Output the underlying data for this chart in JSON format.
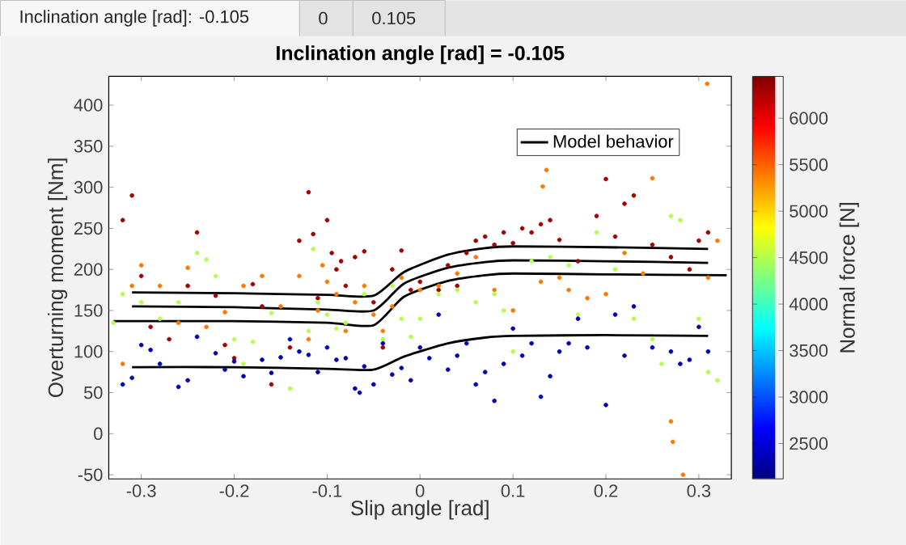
{
  "chart_data": {
    "type": "scatter",
    "title": "Inclination angle [rad] = -0.105",
    "xlabel": "Slip angle [rad]",
    "ylabel": "Overturning moment [Nm]",
    "clabel": "Normal force [N]",
    "annotations": [
      "Inclination angle [rad]: -0.105",
      "0",
      "0.105"
    ],
    "xlim": [
      -0.335,
      0.335
    ],
    "ylim": [
      -55,
      435
    ],
    "xticks": [
      -0.3,
      -0.2,
      -0.1,
      0,
      0.1,
      0.2,
      0.3
    ],
    "yticks": [
      -50,
      0,
      50,
      100,
      150,
      200,
      250,
      300,
      350,
      400
    ],
    "clim": [
      2120,
      6450
    ],
    "cticks": [
      2500,
      3000,
      3500,
      4000,
      4500,
      5000,
      5500,
      6000
    ],
    "legend": "top right",
    "series": [
      {
        "marker": "circle",
        "x": [
          -0.32,
          -0.31,
          -0.3,
          -0.29,
          -0.27,
          -0.25,
          -0.24,
          -0.22,
          -0.21,
          -0.2,
          -0.18,
          -0.17,
          -0.16,
          -0.14,
          -0.13,
          -0.12,
          -0.115,
          -0.11,
          -0.1,
          -0.095,
          -0.09,
          -0.085,
          -0.08,
          -0.07,
          -0.06,
          -0.05,
          -0.04,
          -0.03,
          -0.02,
          -0.01,
          0,
          0.02,
          0.03,
          0.04,
          0.05,
          0.06,
          0.07,
          0.08,
          0.09,
          0.1,
          0.11,
          0.12,
          0.13,
          0.14,
          0.15,
          0.17,
          0.19,
          0.2,
          0.21,
          0.22,
          0.23,
          0.25,
          0.27,
          0.29,
          0.3,
          0.31
        ],
        "values": [
          260,
          290,
          192,
          130,
          115,
          180,
          245,
          168,
          108,
          92,
          182,
          155,
          60,
          105,
          235,
          294,
          243,
          165,
          260,
          220,
          200,
          210,
          180,
          215,
          222,
          160,
          105,
          200,
          223,
          175,
          185,
          175,
          205,
          180,
          220,
          235,
          240,
          230,
          245,
          232,
          250,
          245,
          255,
          260,
          236,
          210,
          265,
          310,
          240,
          280,
          290,
          230,
          215,
          200,
          235,
          245
        ],
        "cvalues": [
          6300,
          6300,
          6300,
          6300,
          6300,
          6300,
          6300,
          6300,
          6300,
          6300,
          6300,
          6300,
          6300,
          6300,
          6300,
          6300,
          6300,
          6300,
          6300,
          6300,
          6300,
          6300,
          6300,
          6300,
          6300,
          6300,
          6300,
          6300,
          6300,
          6300,
          6300,
          6300,
          6300,
          6300,
          6300,
          6300,
          6300,
          6300,
          6300,
          6300,
          6300,
          6300,
          6300,
          6300,
          6300,
          6300,
          6300,
          6300,
          6300,
          6300,
          6300,
          6300,
          6300,
          6300,
          6300,
          6300
        ]
      },
      {
        "marker": "circle",
        "x": [
          -0.32,
          -0.31,
          -0.3,
          -0.28,
          -0.26,
          -0.25,
          -0.23,
          -0.21,
          -0.19,
          -0.17,
          -0.15,
          -0.13,
          -0.12,
          -0.11,
          -0.105,
          -0.1,
          -0.09,
          -0.08,
          -0.07,
          -0.06,
          -0.05,
          -0.04,
          -0.03,
          -0.02,
          0,
          0.02,
          0.04,
          0.06,
          0.08,
          0.1,
          0.132,
          0.136,
          0.13,
          0.15,
          0.16,
          0.18,
          0.2,
          0.22,
          0.25,
          0.24,
          0.27,
          0.272,
          0.283,
          0.31,
          0.32,
          0.309
        ],
        "values": [
          85,
          180,
          205,
          180,
          135,
          202,
          130,
          148,
          180,
          192,
          155,
          192,
          115,
          150,
          205,
          185,
          170,
          125,
          160,
          180,
          145,
          125,
          155,
          190,
          175,
          180,
          195,
          215,
          175,
          150,
          301,
          321,
          185,
          190,
          175,
          165,
          170,
          220,
          311,
          195,
          15,
          -10,
          -50,
          190,
          235,
          426
        ],
        "cvalues": [
          5400,
          5400,
          5400,
          5400,
          5400,
          5400,
          5400,
          5400,
          5400,
          5400,
          5400,
          5400,
          5400,
          5400,
          5400,
          5400,
          5400,
          5400,
          5400,
          5400,
          5400,
          5400,
          5400,
          5400,
          5400,
          5400,
          5400,
          5400,
          5400,
          5400,
          5400,
          5400,
          5400,
          5400,
          5400,
          5400,
          5400,
          5400,
          5400,
          5400,
          5400,
          5400,
          5400,
          5400,
          5400,
          5400
        ]
      },
      {
        "marker": "circle",
        "x": [
          -0.33,
          -0.32,
          -0.3,
          -0.28,
          -0.26,
          -0.24,
          -0.23,
          -0.22,
          -0.2,
          -0.19,
          -0.18,
          -0.16,
          -0.14,
          -0.12,
          -0.115,
          -0.11,
          -0.1,
          -0.09,
          -0.08,
          -0.06,
          -0.04,
          -0.03,
          -0.02,
          -0.01,
          0,
          0.02,
          0.04,
          0.06,
          0.08,
          0.09,
          0.1,
          0.12,
          0.14,
          0.16,
          0.17,
          0.19,
          0.21,
          0.23,
          0.25,
          0.27,
          0.28,
          0.3,
          0.31,
          0.32,
          0.26
        ],
        "values": [
          135,
          170,
          160,
          140,
          160,
          220,
          212,
          192,
          115,
          85,
          112,
          147,
          55,
          125,
          225,
          160,
          145,
          128,
          135,
          170,
          115,
          180,
          140,
          118,
          140,
          170,
          175,
          160,
          170,
          150,
          100,
          210,
          215,
          205,
          145,
          245,
          200,
          140,
          115,
          265,
          260,
          140,
          75,
          65,
          85
        ],
        "cvalues": [
          4500,
          4500,
          4500,
          4500,
          4500,
          4500,
          4500,
          4500,
          4500,
          4500,
          4500,
          4500,
          4500,
          4500,
          4500,
          4500,
          4500,
          4500,
          4500,
          4500,
          4500,
          4500,
          4500,
          4500,
          4500,
          4500,
          4500,
          4500,
          4500,
          4500,
          4500,
          4500,
          4500,
          4500,
          4500,
          4500,
          4500,
          4500,
          4500,
          4500,
          4500,
          4500,
          4500,
          4500,
          4500
        ]
      },
      {
        "marker": "circle",
        "x": [
          -0.32,
          -0.31,
          -0.3,
          -0.29,
          -0.28,
          -0.26,
          -0.25,
          -0.24,
          -0.22,
          -0.21,
          -0.2,
          -0.19,
          -0.17,
          -0.16,
          -0.15,
          -0.14,
          -0.13,
          -0.12,
          -0.11,
          -0.1,
          -0.09,
          -0.08,
          -0.07,
          -0.065,
          -0.06,
          -0.05,
          -0.04,
          -0.03,
          -0.02,
          -0.01,
          0,
          0.01,
          0.02,
          0.03,
          0.04,
          0.05,
          0.06,
          0.07,
          0.08,
          0.09,
          0.1,
          0.11,
          0.12,
          0.13,
          0.14,
          0.15,
          0.16,
          0.17,
          0.18,
          0.2,
          0.21,
          0.22,
          0.23,
          0.25,
          0.27,
          0.28,
          0.3,
          0.31,
          0.29
        ],
        "values": [
          60,
          68,
          108,
          102,
          85,
          57,
          65,
          118,
          98,
          78,
          88,
          70,
          90,
          74,
          93,
          115,
          100,
          96,
          75,
          105,
          90,
          92,
          55,
          50,
          82,
          60,
          110,
          72,
          80,
          65,
          105,
          92,
          145,
          78,
          95,
          110,
          60,
          75,
          40,
          85,
          128,
          95,
          110,
          45,
          70,
          100,
          110,
          140,
          105,
          35,
          145,
          95,
          155,
          105,
          100,
          85,
          130,
          100,
          90
        ],
        "cvalues": [
          2350,
          2350,
          2350,
          2350,
          2350,
          2350,
          2350,
          2350,
          2350,
          2350,
          2350,
          2350,
          2350,
          2350,
          2350,
          2350,
          2350,
          2350,
          2350,
          2350,
          2350,
          2350,
          2350,
          2350,
          2350,
          2350,
          2350,
          2350,
          2350,
          2350,
          2350,
          2350,
          2350,
          2350,
          2350,
          2350,
          2350,
          2350,
          2350,
          2350,
          2350,
          2350,
          2350,
          2350,
          2350,
          2350,
          2350,
          2350,
          2350,
          2350,
          2350,
          2350,
          2350,
          2350,
          2350,
          2350,
          2350,
          2350,
          2350
        ]
      },
      {
        "type": "line",
        "name": "Model behavior",
        "color": "#000000",
        "x": [
          -0.31,
          -0.2,
          -0.1,
          -0.05,
          -0.017,
          0.03,
          0.07,
          0.1,
          0.2,
          0.31
        ],
        "values": [
          172,
          171,
          169,
          168,
          197,
          218,
          226,
          228,
          227,
          225
        ]
      },
      {
        "type": "line",
        "color": "#000000",
        "x": [
          -0.31,
          -0.2,
          -0.1,
          -0.05,
          -0.017,
          0.03,
          0.07,
          0.1,
          0.2,
          0.31
        ],
        "values": [
          155,
          154,
          151,
          150,
          183,
          202,
          209,
          211,
          210,
          208
        ]
      },
      {
        "type": "line",
        "color": "#000000",
        "x": [
          -0.33,
          -0.2,
          -0.1,
          -0.05,
          -0.017,
          0.03,
          0.07,
          0.1,
          0.2,
          0.33
        ],
        "values": [
          137,
          137,
          135,
          132,
          167,
          186,
          193,
          195,
          194,
          193
        ]
      },
      {
        "type": "line",
        "color": "#000000",
        "x": [
          -0.31,
          -0.2,
          -0.1,
          -0.05,
          -0.017,
          0.03,
          0.07,
          0.1,
          0.2,
          0.31
        ],
        "values": [
          81,
          81,
          79,
          78,
          94,
          110,
          117,
          119,
          120,
          119
        ]
      }
    ]
  }
}
